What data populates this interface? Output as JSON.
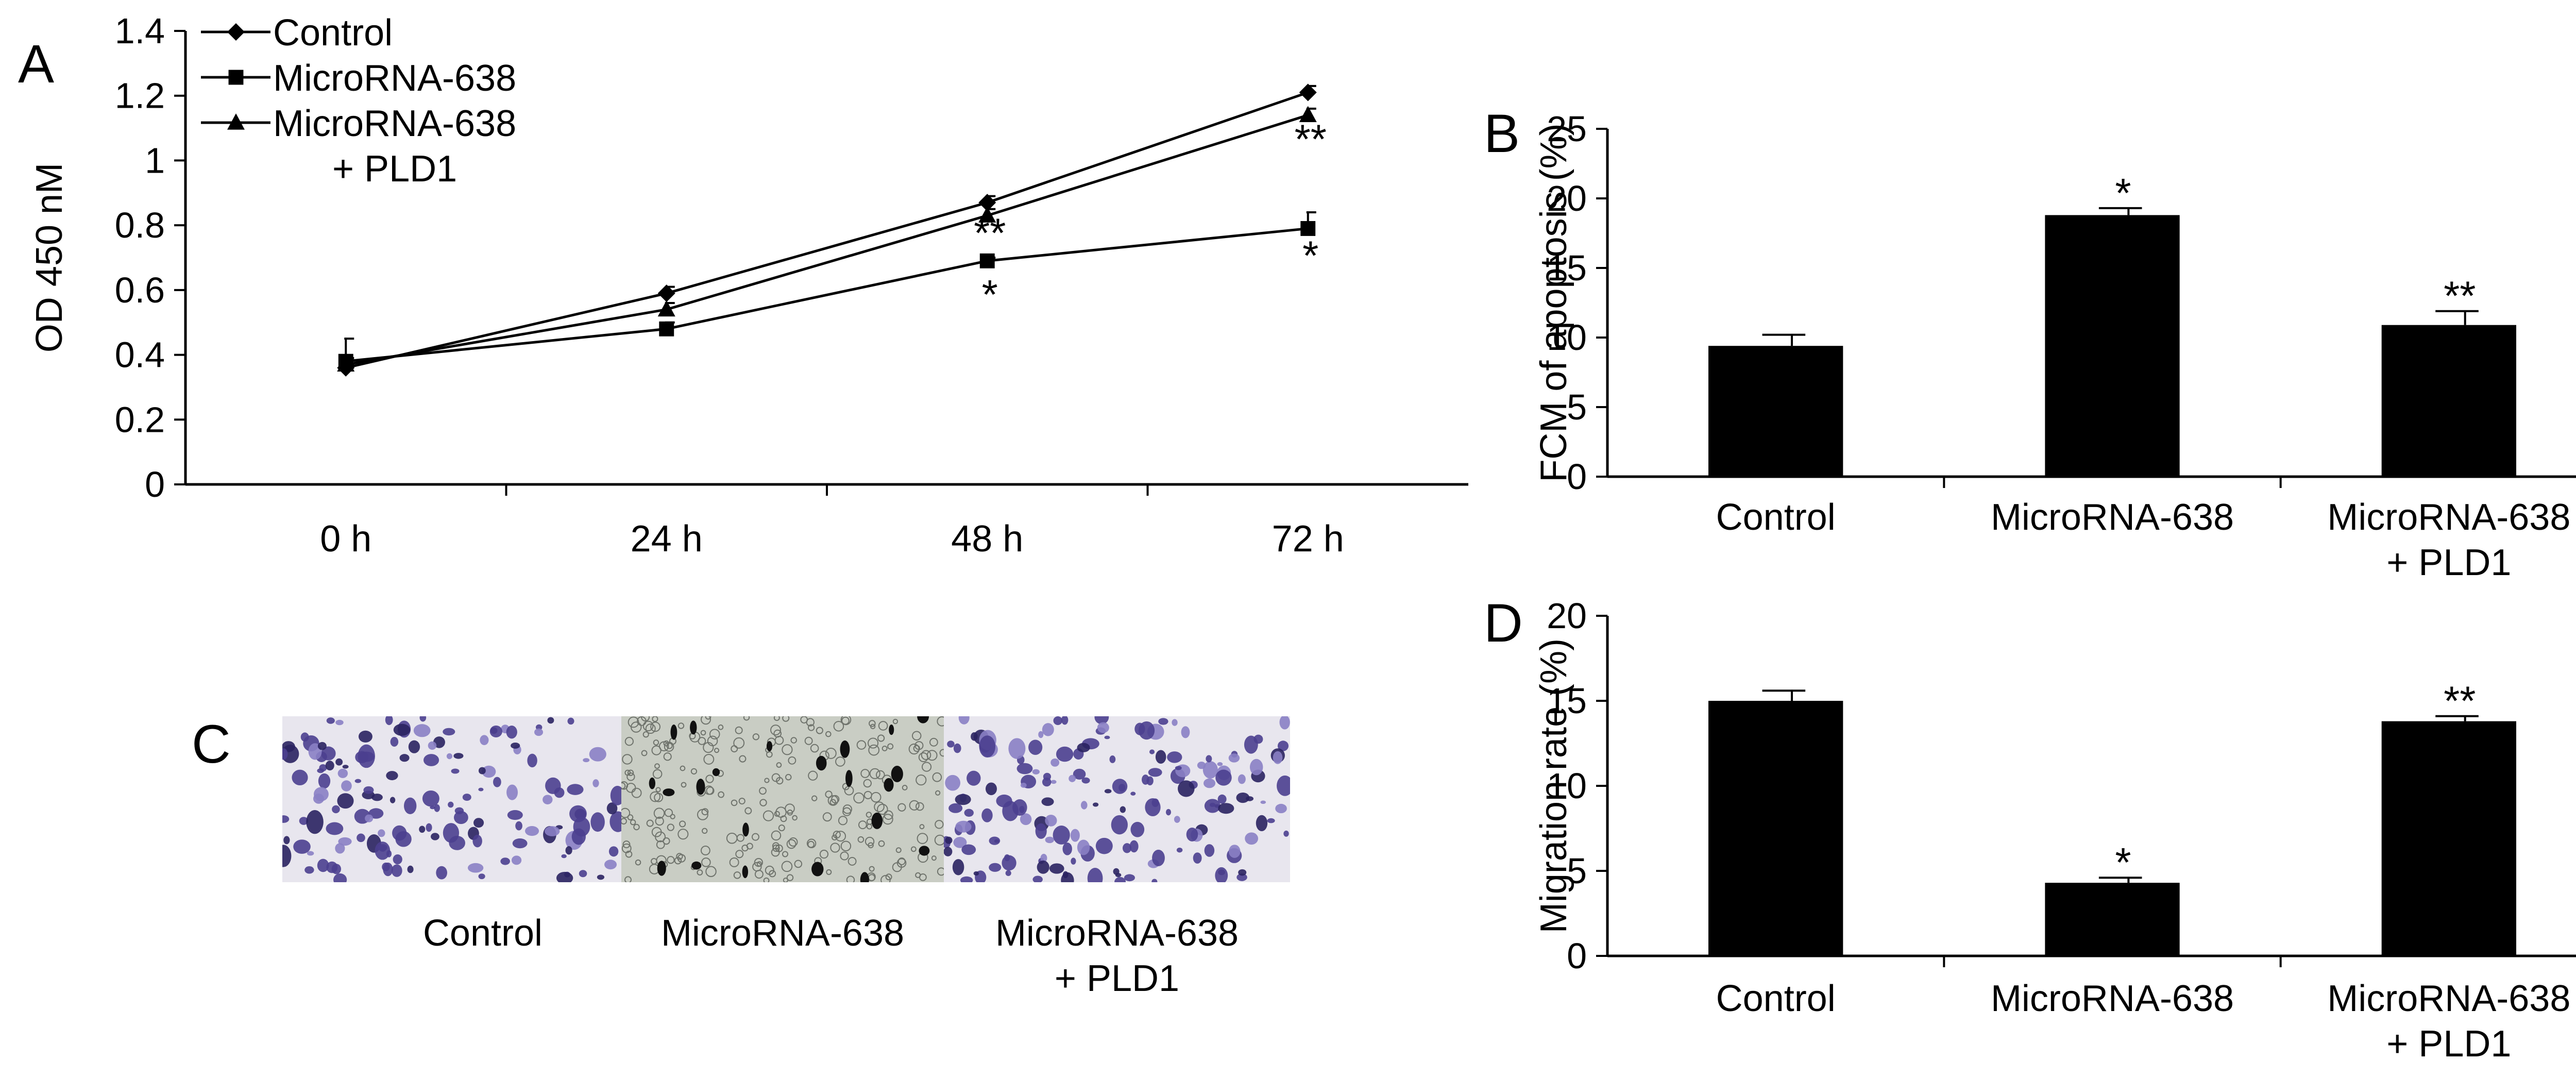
{
  "figure_label": "Panels A–D",
  "chart_data": [
    {
      "panel": "A",
      "type": "line",
      "categories": [
        "0 h",
        "24 h",
        "48 h",
        "72 h"
      ],
      "ylabel": "OD 450 nM",
      "ylim": [
        0,
        1.4
      ],
      "yticks": [
        "0",
        "0.2",
        "0.4",
        "0.6",
        "0.8",
        "1",
        "1.2",
        "1.4"
      ],
      "legend_placement": "top-left",
      "series": [
        {
          "name": "Control",
          "marker": "diamond",
          "values": [
            0.36,
            0.59,
            0.87,
            1.21
          ],
          "errors": [
            0.01,
            0.02,
            0.02,
            0.02
          ]
        },
        {
          "name": "MicroRNA-638",
          "marker": "square",
          "values": [
            0.38,
            0.48,
            0.69,
            0.79
          ],
          "errors": [
            0.07,
            0.02,
            0.01,
            0.05
          ]
        },
        {
          "name": "MicroRNA-638 + PLD1",
          "legend_lines": [
            "MicroRNA-638",
            "+ PLD1"
          ],
          "marker": "triangle",
          "values": [
            0.37,
            0.54,
            0.83,
            1.14
          ],
          "errors": [
            0.02,
            0.02,
            0.02,
            0.02
          ]
        }
      ],
      "annotations": [
        {
          "text": "**",
          "x": "48 h",
          "y": 0.78
        },
        {
          "text": "*",
          "x": "48 h",
          "y": 0.59
        },
        {
          "text": "**",
          "x": "72 h",
          "y": 1.07
        },
        {
          "text": "*",
          "x": "72 h",
          "y": 0.71
        }
      ]
    },
    {
      "panel": "B",
      "type": "bar",
      "categories": [
        "Control",
        "MicroRNA-638",
        "MicroRNA-638 + PLD1"
      ],
      "category_lines": [
        [
          "Control"
        ],
        [
          "MicroRNA-638"
        ],
        [
          "MicroRNA-638",
          "+ PLD1"
        ]
      ],
      "values": [
        9.4,
        18.8,
        10.9
      ],
      "errors": [
        0.8,
        0.5,
        1.0
      ],
      "significance": [
        "",
        "*",
        "**"
      ],
      "ylabel": "FCM of apoptosis (%)",
      "ylim": [
        0,
        25
      ],
      "yticks": [
        "0",
        "5",
        "10",
        "15",
        "20",
        "25"
      ]
    },
    {
      "panel": "D",
      "type": "bar",
      "categories": [
        "Control",
        "MicroRNA-638",
        "MicroRNA-638 + PLD1"
      ],
      "category_lines": [
        [
          "Control"
        ],
        [
          "MicroRNA-638"
        ],
        [
          "MicroRNA-638",
          "+ PLD1"
        ]
      ],
      "values": [
        15.0,
        4.3,
        13.8
      ],
      "errors": [
        0.6,
        0.3,
        0.3
      ],
      "significance": [
        "",
        "*",
        "**"
      ],
      "ylabel": "Migration rate (%)",
      "ylim": [
        0,
        20
      ],
      "yticks": [
        "0",
        "5",
        "10",
        "15",
        "20"
      ]
    }
  ],
  "panel_c": {
    "label": "C",
    "captions": [
      [
        "Control"
      ],
      [
        "MicroRNA-638"
      ],
      [
        "MicroRNA-638",
        "+ PLD1"
      ]
    ],
    "colors": {
      "stain": "#4b3f8f",
      "stain_dark": "#2a2260",
      "stain_light": "#8a7fc4",
      "background": "#e8e6ee",
      "background2": "#c9cdc4",
      "dark_spot": "#111111"
    }
  },
  "colors": {
    "ink": "#000000",
    "bar": "#000000",
    "background": "#ffffff"
  }
}
